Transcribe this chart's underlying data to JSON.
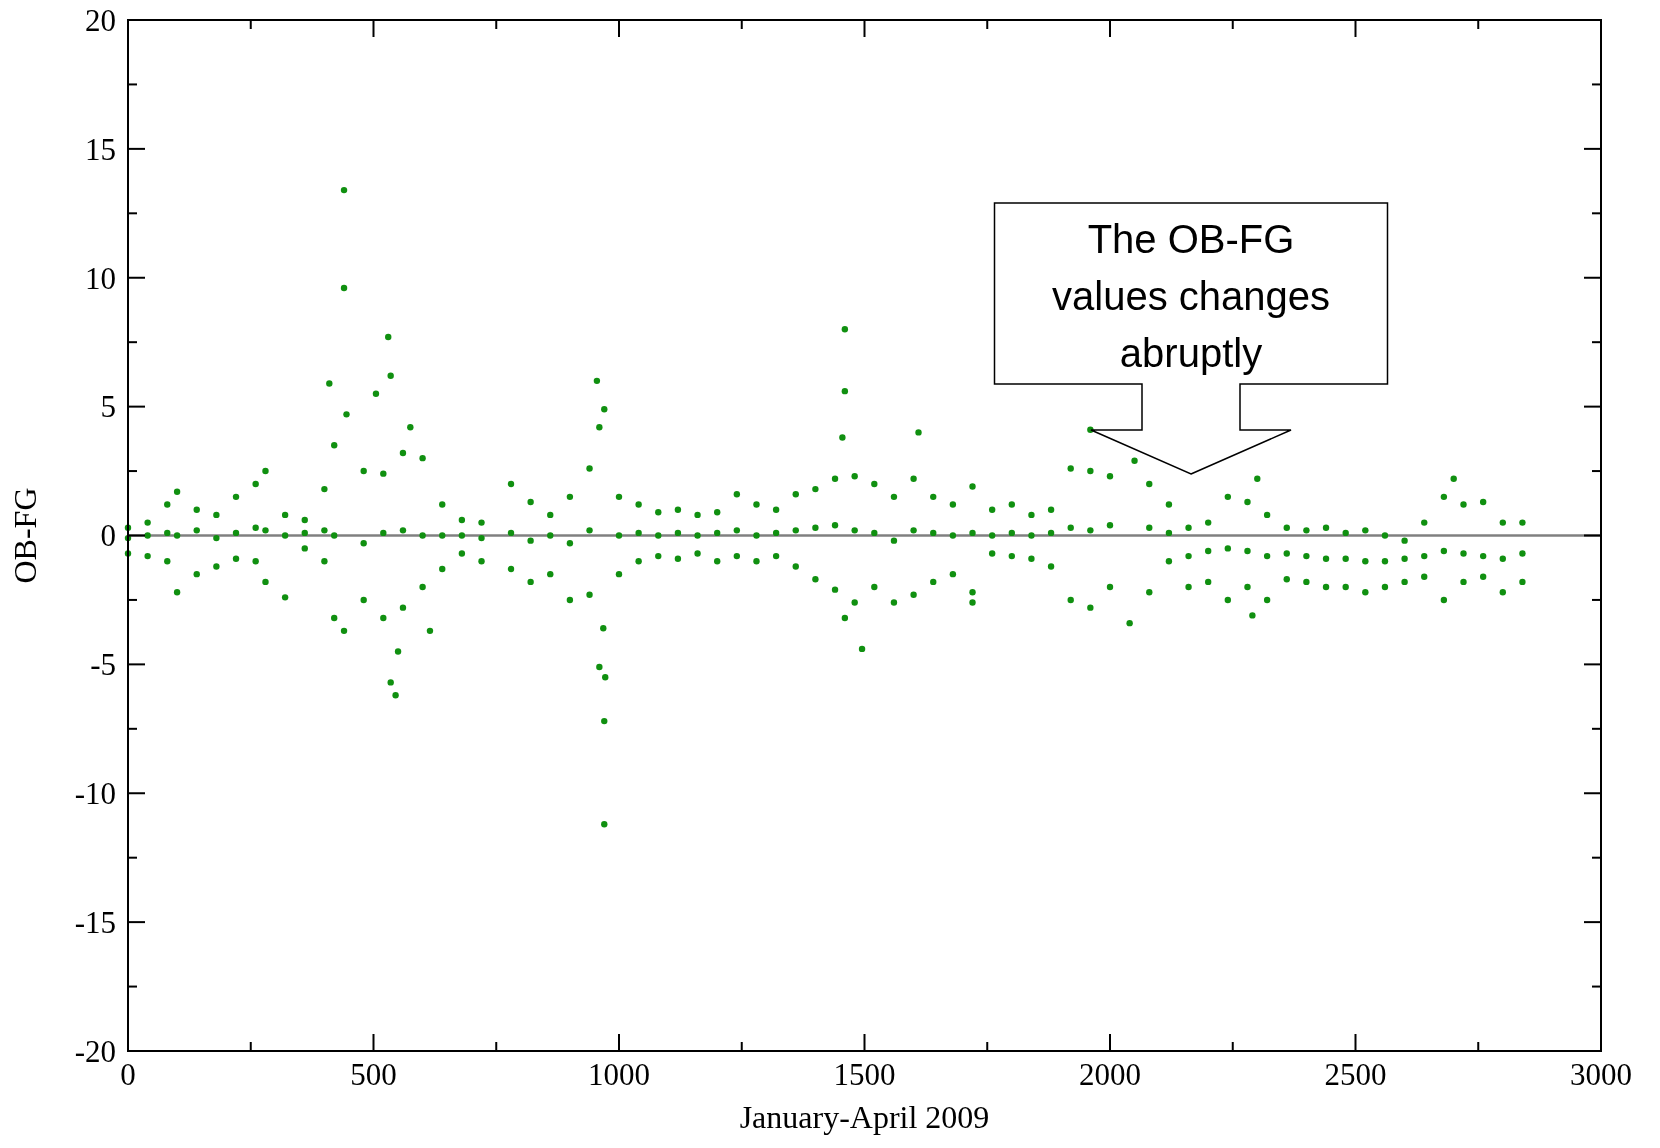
{
  "chart_data": {
    "type": "scatter",
    "xlabel": "January-April 2009",
    "ylabel": "OB-FG",
    "xlim": [
      0,
      3000
    ],
    "ylim": [
      -20,
      20
    ],
    "xticks": [
      0,
      {
        "value": 250,
        "label": null
      },
      500,
      {
        "value": 750,
        "label": null
      },
      1000,
      {
        "value": 1250,
        "label": null
      },
      1500,
      {
        "value": 1750,
        "label": null
      },
      2000,
      {
        "value": 2250,
        "label": null
      },
      2500,
      {
        "value": 2750,
        "label": null
      },
      3000
    ],
    "yticks": [
      -20,
      {
        "value": -17.5,
        "label": null
      },
      -15,
      {
        "value": -12.5,
        "label": null
      },
      -10,
      {
        "value": -7.5,
        "label": null
      },
      -5,
      {
        "value": -2.5,
        "label": null
      },
      0,
      {
        "value": 2.5,
        "label": null
      },
      5,
      {
        "value": 7.5,
        "label": null
      },
      10,
      {
        "value": 12.5,
        "label": null
      },
      15,
      {
        "value": 17.5,
        "label": null
      },
      20
    ],
    "grid": false,
    "marker": "circle",
    "ref_lines": [
      {
        "axis": "y",
        "value": 0,
        "color": "#808080"
      }
    ],
    "annotations": [
      "The OB-FG\nvalues changes\nabruptly"
    ],
    "series": [
      {
        "color": "#109010",
        "x": [
          440,
          440,
          410,
          445,
          530,
          535,
          505,
          575,
          440,
          535,
          545,
          550,
          615,
          955,
          970,
          960,
          960,
          972,
          970,
          970,
          968,
          1460,
          1460,
          1455,
          1495,
          1460,
          1610,
          1960,
          2040,
          2050,
          2300,
          2700,
          2290,
          1720,
          0,
          0,
          0,
          40,
          40,
          40,
          80,
          80,
          80,
          100,
          100,
          100,
          140,
          140,
          140,
          180,
          180,
          180,
          220,
          220,
          220,
          260,
          260,
          260,
          280,
          280,
          280,
          320,
          320,
          320,
          360,
          360,
          360,
          400,
          400,
          400,
          420,
          420,
          420,
          480,
          480,
          480,
          520,
          520,
          520,
          560,
          560,
          560,
          600,
          600,
          600,
          640,
          640,
          640,
          680,
          680,
          680,
          720,
          720,
          720,
          780,
          780,
          780,
          820,
          820,
          820,
          860,
          860,
          860,
          900,
          900,
          900,
          940,
          940,
          940,
          1000,
          1000,
          1000,
          1040,
          1040,
          1040,
          1080,
          1080,
          1080,
          1120,
          1120,
          1120,
          1160,
          1160,
          1160,
          1200,
          1200,
          1200,
          1240,
          1240,
          1240,
          1280,
          1280,
          1280,
          1320,
          1320,
          1320,
          1360,
          1360,
          1360,
          1400,
          1400,
          1400,
          1440,
          1440,
          1440,
          1480,
          1480,
          1480,
          1520,
          1520,
          1520,
          1560,
          1560,
          1560,
          1600,
          1600,
          1600,
          1640,
          1640,
          1640,
          1680,
          1680,
          1680,
          1720,
          1720,
          1720,
          1760,
          1760,
          1760,
          1800,
          1800,
          1800,
          1840,
          1840,
          1840,
          1880,
          1880,
          1880,
          1920,
          1920,
          1920,
          1960,
          1960,
          1960,
          2000,
          2000,
          2000,
          2080,
          2080,
          2080,
          2120,
          2120,
          2120,
          2160,
          2160,
          2160,
          2200,
          2200,
          2200,
          2240,
          2240,
          2240,
          2280,
          2280,
          2280,
          2320,
          2320,
          2320,
          2360,
          2360,
          2360,
          2400,
          2400,
          2400,
          2440,
          2440,
          2440,
          2480,
          2480,
          2480,
          2520,
          2520,
          2520,
          2560,
          2560,
          2560,
          2600,
          2600,
          2600,
          2640,
          2640,
          2640,
          2680,
          2680,
          2680,
          2720,
          2720,
          2720,
          2760,
          2760,
          2760,
          2800,
          2800,
          2800,
          2840,
          2840,
          2840
        ],
        "values": [
          13.4,
          9.6,
          5.9,
          4.7,
          7.7,
          6.2,
          5.5,
          4.2,
          -3.7,
          -5.7,
          -6.2,
          -4.5,
          -3.7,
          6.0,
          4.9,
          4.2,
          -5.1,
          -5.5,
          -7.2,
          -11.2,
          -3.6,
          8.0,
          5.6,
          3.8,
          -4.4,
          -3.2,
          4.0,
          4.1,
          -3.4,
          2.9,
          2.2,
          2.2,
          -3.1,
          -2.6,
          0.3,
          -0.1,
          -0.7,
          0.5,
          0,
          -0.8,
          1.2,
          0.1,
          -1.0,
          1.7,
          0,
          -2.2,
          1.0,
          0.2,
          -1.5,
          0.8,
          -0.1,
          -1.2,
          1.5,
          0.1,
          -0.9,
          2.0,
          0.3,
          -1.0,
          2.5,
          0.2,
          -1.8,
          0.8,
          0,
          -2.4,
          0.6,
          0.1,
          -0.5,
          1.8,
          0.2,
          -1.0,
          3.5,
          0,
          -3.2,
          2.5,
          -0.3,
          -2.5,
          2.4,
          0.1,
          -3.2,
          3.2,
          0.2,
          -2.8,
          3.0,
          0,
          -2.0,
          1.2,
          0,
          -1.3,
          0.6,
          0,
          -0.7,
          0.5,
          -0.1,
          -1.0,
          2.0,
          0.1,
          -1.3,
          1.3,
          -0.2,
          -1.8,
          0.8,
          0,
          -1.5,
          1.5,
          -0.3,
          -2.5,
          2.6,
          0.2,
          -2.3,
          1.5,
          0,
          -1.5,
          1.2,
          0.1,
          -1.0,
          0.9,
          0,
          -0.8,
          1.0,
          0.1,
          -0.9,
          0.8,
          0,
          -0.7,
          0.9,
          0.1,
          -1.0,
          1.6,
          0.2,
          -0.8,
          1.2,
          0,
          -1.0,
          1.0,
          0.1,
          -0.8,
          1.6,
          0.2,
          -1.2,
          1.8,
          0.3,
          -1.7,
          2.2,
          0.4,
          -2.1,
          2.3,
          0.2,
          -2.6,
          2.0,
          0.1,
          -2.0,
          1.5,
          -0.2,
          -2.6,
          2.2,
          0.2,
          -2.3,
          1.5,
          0.1,
          -1.8,
          1.2,
          0,
          -1.5,
          1.9,
          0.1,
          -2.2,
          1.0,
          0,
          -0.7,
          1.2,
          0.1,
          -0.8,
          0.8,
          0,
          -0.9,
          1.0,
          0.1,
          -1.2,
          2.6,
          0.3,
          -2.5,
          2.5,
          0.2,
          -2.8,
          2.3,
          0.4,
          -2.0,
          2.0,
          0.3,
          -2.2,
          1.2,
          0.1,
          -1.0,
          0.3,
          -0.8,
          -2.0,
          0.5,
          -0.6,
          -1.8,
          1.5,
          -0.5,
          -2.5,
          1.3,
          -0.6,
          -2.0,
          0.8,
          -0.8,
          -2.5,
          0.3,
          -0.7,
          -1.7,
          0.2,
          -0.8,
          -1.8,
          0.3,
          -0.9,
          -2.0,
          0.1,
          -0.9,
          -2.0,
          0.2,
          -1.0,
          -2.2,
          0,
          -1.0,
          -2.0,
          -0.2,
          -0.9,
          -1.8,
          0.5,
          -0.8,
          -1.6,
          1.5,
          -0.6,
          -2.5,
          1.2,
          -0.7,
          -1.8,
          1.3,
          -0.8,
          -1.6,
          0.5,
          -0.9,
          -2.2,
          0.5,
          -0.7,
          -1.8
        ]
      }
    ]
  }
}
